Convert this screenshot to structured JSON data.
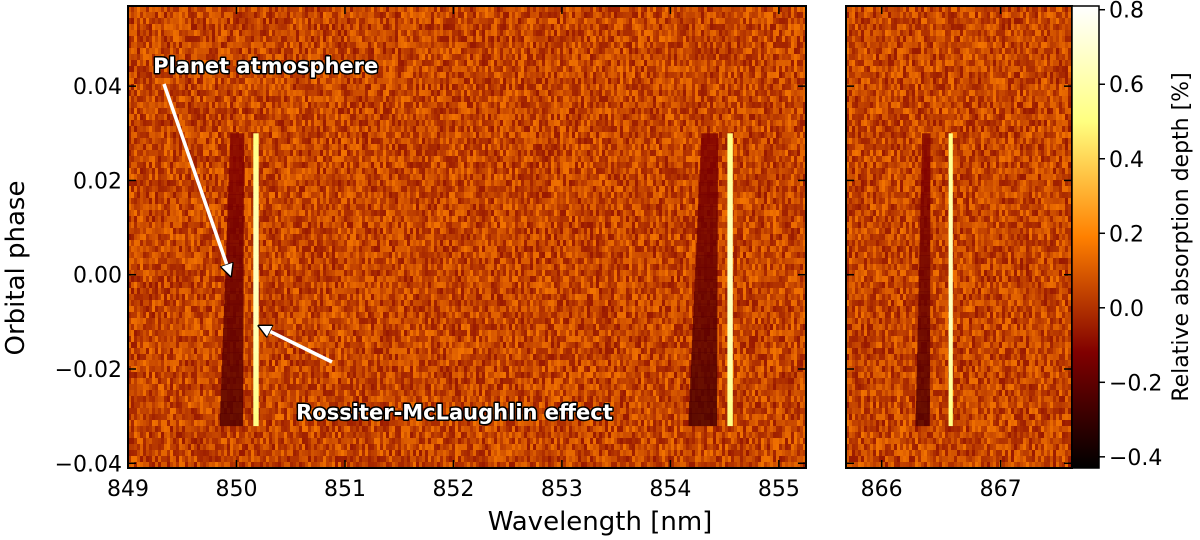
{
  "chart_data": {
    "type": "heatmap",
    "xlabel": "Wavelength [nm]",
    "ylabel": "Orbital phase",
    "colorbar": {
      "label": "Relative absorption depth [%]",
      "range": [
        -0.43,
        0.81
      ],
      "ticks": [
        -0.4,
        -0.2,
        0.0,
        0.2,
        0.4,
        0.6,
        0.8
      ],
      "tick_labels": [
        "−0.4",
        "−0.2",
        "0.0",
        "0.2",
        "0.4",
        "0.6",
        "0.8"
      ],
      "colormap": "afmhot"
    },
    "yaxis": {
      "range": [
        -0.041,
        0.057
      ],
      "ticks": [
        -0.04,
        -0.02,
        0.0,
        0.02,
        0.04
      ],
      "tick_labels": [
        "−0.04",
        "−0.02",
        "0.00",
        "0.02",
        "0.04"
      ]
    },
    "panels": [
      {
        "xlim": [
          849.0,
          855.25
        ],
        "ticks": [
          849,
          850,
          851,
          852,
          853,
          854,
          855
        ],
        "tick_labels": [
          "849",
          "850",
          "851",
          "852",
          "853",
          "854",
          "855"
        ],
        "features": [
          {
            "kind": "dark-trough",
            "center": 849.98,
            "width": 0.18,
            "depth": -0.28
          },
          {
            "kind": "bright-line",
            "center": 850.18,
            "width": 0.05,
            "depth": 0.6
          },
          {
            "kind": "dark-trough",
            "center": 854.33,
            "width": 0.22,
            "depth": -0.3
          },
          {
            "kind": "bright-line",
            "center": 854.55,
            "width": 0.05,
            "depth": 0.6
          }
        ]
      },
      {
        "xlim": [
          865.7,
          867.6
        ],
        "ticks": [
          866,
          867
        ],
        "tick_labels": [
          "866",
          "867"
        ],
        "features": [
          {
            "kind": "dark-trough",
            "center": 866.36,
            "width": 0.1,
            "depth": -0.28
          },
          {
            "kind": "bright-line",
            "center": 866.58,
            "width": 0.035,
            "depth": 0.6
          }
        ]
      }
    ],
    "transit_phase": [
      -0.032,
      0.03
    ],
    "annotations": [
      {
        "text": "Planet atmosphere",
        "text_at": [
          849.25,
          0.046
        ],
        "arrow_to": [
          849.98,
          0.0
        ]
      },
      {
        "text": "Rossiter-McLaughlin effect",
        "text_at": [
          850.55,
          -0.029
        ],
        "arrow_to": [
          850.2,
          -0.011
        ]
      }
    ]
  }
}
